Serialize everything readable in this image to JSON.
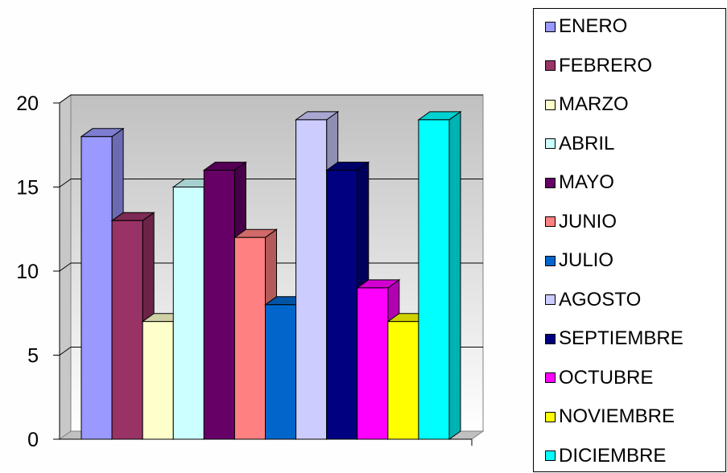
{
  "chart_data": {
    "type": "bar",
    "style": "3d-clustered-column",
    "categories": [
      ""
    ],
    "series": [
      {
        "name": "ENERO",
        "values": [
          18
        ],
        "color": "#9999ff"
      },
      {
        "name": "FEBRERO",
        "values": [
          13
        ],
        "color": "#993366"
      },
      {
        "name": "MARZO",
        "values": [
          7
        ],
        "color": "#ffffcc"
      },
      {
        "name": "ABRIL",
        "values": [
          15
        ],
        "color": "#ccffff"
      },
      {
        "name": "MAYO",
        "values": [
          16
        ],
        "color": "#660066"
      },
      {
        "name": "JUNIO",
        "values": [
          12
        ],
        "color": "#ff8080"
      },
      {
        "name": "JULIO",
        "values": [
          8
        ],
        "color": "#0066cc"
      },
      {
        "name": "AGOSTO",
        "values": [
          19
        ],
        "color": "#ccccff"
      },
      {
        "name": "SEPTIEMBRE",
        "values": [
          16
        ],
        "color": "#000080"
      },
      {
        "name": "OCTUBRE",
        "values": [
          9
        ],
        "color": "#ff00ff"
      },
      {
        "name": "NOVIEMBRE",
        "values": [
          7
        ],
        "color": "#ffff00"
      },
      {
        "name": "DICIEMBRE",
        "values": [
          19
        ],
        "color": "#00ffff"
      }
    ],
    "y_ticks": [
      "0",
      "5",
      "10",
      "15",
      "20"
    ],
    "ylim": [
      0,
      20
    ],
    "grid": true,
    "legend": "right",
    "title": "",
    "xlabel": "",
    "ylabel": ""
  }
}
